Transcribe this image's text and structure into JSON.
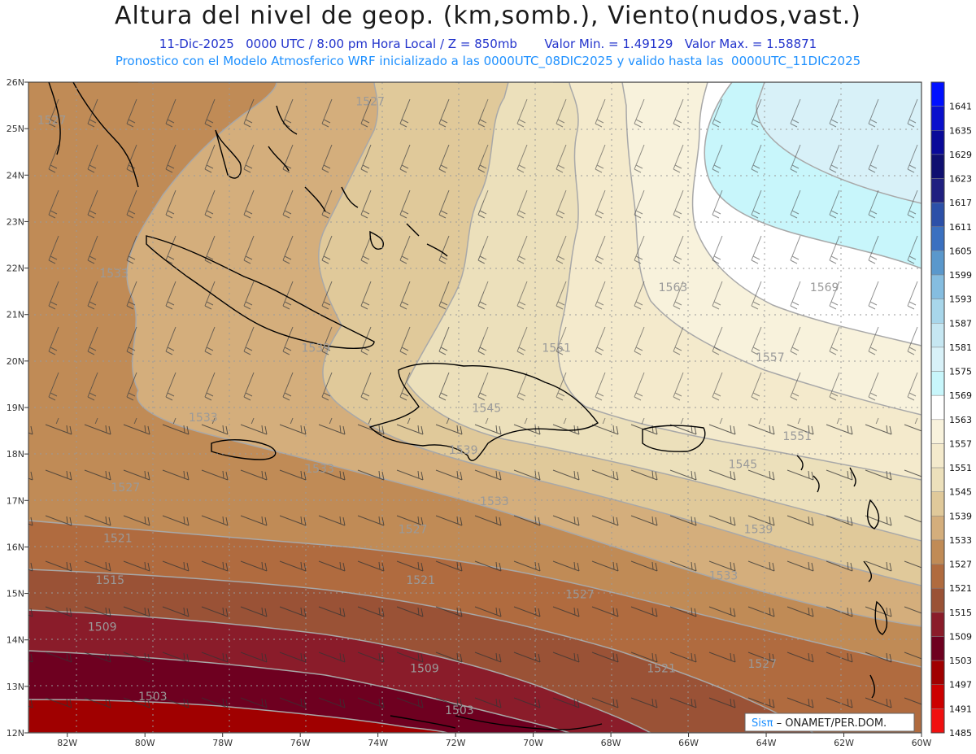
{
  "header": {
    "title": "Altura del nivel de geop. (km,somb.), Viento(nudos,vast.)",
    "subtitle": "11-Dic-2025   0000 UTC / 8:00 pm Hora Local / Z = 850mb       Valor Min. = 1.49129   Valor Max. = 1.58871",
    "subtitle2": "Pronostico con el Modelo Atmosferico WRF inicializado a las 0000UTC_08DIC2025 y valido hasta las  0000UTC_11DIC2025"
  },
  "map": {
    "lon_range": [
      -83,
      -60
    ],
    "lat_range": [
      12,
      26
    ],
    "lat_ticks": [
      "26N",
      "25N",
      "24N",
      "23N",
      "22N",
      "21N",
      "20N",
      "19N",
      "18N",
      "17N",
      "16N",
      "15N",
      "14N",
      "13N",
      "12N"
    ],
    "lon_ticks": [
      "82W",
      "80W",
      "78W",
      "76W",
      "74W",
      "72W",
      "70W",
      "68W",
      "66W",
      "64W",
      "62W",
      "60W"
    ],
    "contour_labels": [
      {
        "text": "1527",
        "lon": -82.4,
        "lat": 25.1
      },
      {
        "text": "1527",
        "lon": -74.2,
        "lat": 25.5
      },
      {
        "text": "1533",
        "lon": -80.8,
        "lat": 21.8
      },
      {
        "text": "1539",
        "lon": -75.6,
        "lat": 20.2
      },
      {
        "text": "1533",
        "lon": -78.5,
        "lat": 18.7
      },
      {
        "text": "1533",
        "lon": -75.5,
        "lat": 17.6
      },
      {
        "text": "1527",
        "lon": -80.5,
        "lat": 17.2
      },
      {
        "text": "1521",
        "lon": -80.7,
        "lat": 16.1
      },
      {
        "text": "1515",
        "lon": -80.9,
        "lat": 15.2
      },
      {
        "text": "1509",
        "lon": -81.1,
        "lat": 14.2
      },
      {
        "text": "1503",
        "lon": -79.8,
        "lat": 12.7
      },
      {
        "text": "1509",
        "lon": -72.8,
        "lat": 13.3
      },
      {
        "text": "1503",
        "lon": -71.9,
        "lat": 12.4
      },
      {
        "text": "1521",
        "lon": -72.9,
        "lat": 15.2
      },
      {
        "text": "1527",
        "lon": -73.1,
        "lat": 16.3
      },
      {
        "text": "1533",
        "lon": -71.0,
        "lat": 16.9
      },
      {
        "text": "1539",
        "lon": -71.8,
        "lat": 18.0
      },
      {
        "text": "1545",
        "lon": -71.2,
        "lat": 18.9
      },
      {
        "text": "1551",
        "lon": -69.4,
        "lat": 20.2
      },
      {
        "text": "1557",
        "lon": -63.9,
        "lat": 20.0
      },
      {
        "text": "1563",
        "lon": -66.4,
        "lat": 21.5
      },
      {
        "text": "1569",
        "lon": -62.5,
        "lat": 21.5
      },
      {
        "text": "1551",
        "lon": -63.2,
        "lat": 18.3
      },
      {
        "text": "1545",
        "lon": -64.6,
        "lat": 17.7
      },
      {
        "text": "1539",
        "lon": -64.2,
        "lat": 16.3
      },
      {
        "text": "1533",
        "lon": -65.1,
        "lat": 15.3
      },
      {
        "text": "1527",
        "lon": -68.8,
        "lat": 14.9
      },
      {
        "text": "1521",
        "lon": -66.7,
        "lat": 13.3
      },
      {
        "text": "1527",
        "lon": -64.1,
        "lat": 13.4
      }
    ]
  },
  "colorbar": {
    "levels": [
      "1641",
      "1635",
      "1629",
      "1623",
      "1617",
      "1611",
      "1605",
      "1599",
      "1593",
      "1587",
      "1581",
      "1575",
      "1569",
      "1563",
      "1557",
      "1551",
      "1545",
      "1539",
      "1533",
      "1527",
      "1521",
      "1515",
      "1509",
      "1503",
      "1497",
      "1491",
      "1485"
    ],
    "colors": [
      "#0010ff",
      "#0a10cc",
      "#0a0a99",
      "#101070",
      "#202080",
      "#2c50a8",
      "#3a70c0",
      "#5a98cc",
      "#85bde0",
      "#a8d6ea",
      "#c6e7f2",
      "#d8f1f8",
      "#c8f6fb",
      "#ffffff",
      "#f8f2dc",
      "#f4eacc",
      "#ece0bb",
      "#e0c99a",
      "#d4ae7c",
      "#c08b56",
      "#b06b3f",
      "#9a5236",
      "#8a1c2a",
      "#6e0020",
      "#a00000",
      "#cc0000",
      "#f01010"
    ]
  },
  "credit": {
    "brand": "Sisπ",
    "text": " – ONAMET/PER.DOM."
  }
}
